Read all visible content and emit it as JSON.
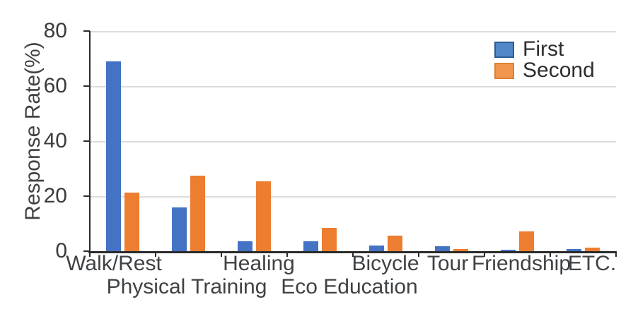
{
  "chart_data": {
    "type": "bar",
    "title": "",
    "ylabel": "Response Rate(%)",
    "xlabel": "",
    "ylim": [
      0,
      80
    ],
    "yticks": [
      0,
      20,
      40,
      60,
      80
    ],
    "grid": true,
    "legend_position": "top-right",
    "categories": [
      "Walk/Rest",
      "Physical Training",
      "Healing",
      "Eco Education",
      "Bicycle",
      "Tour",
      "Friendship",
      "ETC."
    ],
    "label_row": [
      1,
      2,
      1,
      2,
      1,
      1,
      1,
      1
    ],
    "series": [
      {
        "name": "First",
        "color": "#4472C4",
        "legend_fill": "#5288C7",
        "legend_border": "#2F5B94",
        "values": [
          69,
          16,
          3.6,
          3.7,
          2.1,
          1.7,
          0.5,
          0.7
        ]
      },
      {
        "name": "Second",
        "color": "#ED7D31",
        "legend_fill": "#F0964F",
        "legend_border": "#DD8134",
        "values": [
          21.2,
          27.4,
          25.3,
          8.4,
          5.6,
          0.9,
          7.3,
          1.4
        ]
      }
    ]
  },
  "colors": {
    "gridline": "#DCDCDC",
    "axis": "#2B2B2B",
    "tick_text": "#3B3B3B",
    "label_text": "#3F4245",
    "legend_text": "#2E2E2E"
  }
}
